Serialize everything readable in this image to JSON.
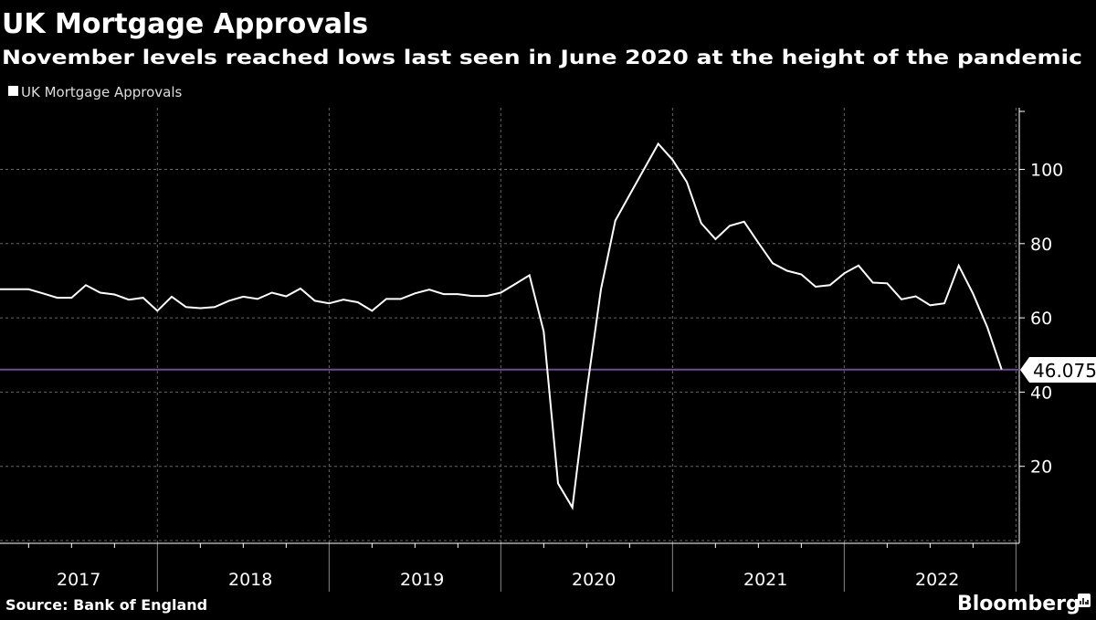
{
  "title": "UK Mortgage Approvals",
  "subtitle": "November levels reached lows last seen in June 2020 at the height of the pandemic",
  "source": "Source: Bank of England",
  "logo": "Bloomberg",
  "colors": {
    "background": "#000000",
    "line": "#ffffff",
    "reference_line": "#6b4f8f"
  },
  "chart_data": {
    "type": "line",
    "title": "UK Mortgage Approvals",
    "legend": {
      "position": "top-left",
      "entries": [
        "UK Mortgage Approvals"
      ]
    },
    "x_tick_labels": [
      "2017",
      "2018",
      "2019",
      "2020",
      "2021",
      "2022"
    ],
    "y_tick_labels": [
      "20",
      "40",
      "60",
      "80",
      "100"
    ],
    "y_ticks": [
      20,
      40,
      60,
      80,
      100
    ],
    "ylim": [
      0,
      115
    ],
    "y_axis_side": "right",
    "grid": true,
    "last_value_label": "46.075",
    "reference_line": 46.075,
    "series": [
      {
        "name": "UK Mortgage Approvals",
        "start": "2017-01",
        "frequency": "monthly",
        "values": [
          67.7,
          67.7,
          67.7,
          66.6,
          65.4,
          65.4,
          68.8,
          66.8,
          66.3,
          64.9,
          65.4,
          61.9,
          65.7,
          62.9,
          62.6,
          62.9,
          64.6,
          65.7,
          65.1,
          66.8,
          65.8,
          67.9,
          64.6,
          63.9,
          64.9,
          64.2,
          61.9,
          65.1,
          65.1,
          66.6,
          67.6,
          66.4,
          66.4,
          65.9,
          65.9,
          66.8,
          69.1,
          71.5,
          56.3,
          15.4,
          8.9,
          40.1,
          67.7,
          86.2,
          93.1,
          100.0,
          106.9,
          102.6,
          96.6,
          85.5,
          81.2,
          84.8,
          85.9,
          80.2,
          74.7,
          72.7,
          71.7,
          68.4,
          68.8,
          72.0,
          74.1,
          69.5,
          69.3,
          65.0,
          65.8,
          63.4,
          63.9,
          74.1,
          66.5,
          57.5,
          46.075
        ]
      }
    ]
  }
}
